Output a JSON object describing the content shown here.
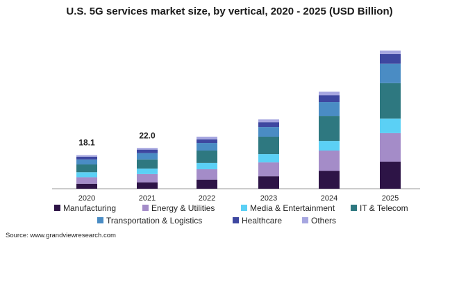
{
  "chart_data": {
    "type": "bar",
    "stacked": true,
    "title": "U.S. 5G services market size, by vertical, 2020 - 2025 (USD Billion)",
    "xlabel": "",
    "ylabel": "",
    "ylim": [
      0,
      80
    ],
    "grid": false,
    "legend_position": "bottom",
    "categories": [
      "2020",
      "2021",
      "2022",
      "2023",
      "2024",
      "2025"
    ],
    "data_labels": [
      "18.1",
      "22.0",
      "",
      "",
      "",
      ""
    ],
    "series": [
      {
        "name": "Manufacturing",
        "color": "#2d1446",
        "values": [
          2.7,
          3.4,
          4.9,
          6.7,
          9.7,
          14.6
        ]
      },
      {
        "name": "Energy & Utilities",
        "color": "#a48cc8",
        "values": [
          3.5,
          4.5,
          5.6,
          7.5,
          10.9,
          15.4
        ]
      },
      {
        "name": "Media & Entertainment",
        "color": "#5bd0f5",
        "values": [
          2.7,
          3.0,
          3.4,
          4.5,
          5.2,
          7.9
        ]
      },
      {
        "name": "IT & Telecom",
        "color": "#2e7880",
        "values": [
          4.2,
          4.9,
          6.7,
          9.4,
          13.5,
          19.1
        ]
      },
      {
        "name": "Transportation & Logistics",
        "color": "#4a8cc4",
        "values": [
          2.7,
          3.4,
          4.1,
          5.2,
          7.5,
          10.5
        ]
      },
      {
        "name": "Healthcare",
        "color": "#3e47a0",
        "values": [
          1.5,
          1.9,
          1.9,
          2.6,
          3.7,
          5.2
        ]
      },
      {
        "name": "Others",
        "color": "#a6a6e0",
        "values": [
          0.8,
          0.9,
          1.5,
          1.5,
          1.9,
          1.9
        ]
      }
    ]
  },
  "source": "Source: www.grandviewresearch.com"
}
